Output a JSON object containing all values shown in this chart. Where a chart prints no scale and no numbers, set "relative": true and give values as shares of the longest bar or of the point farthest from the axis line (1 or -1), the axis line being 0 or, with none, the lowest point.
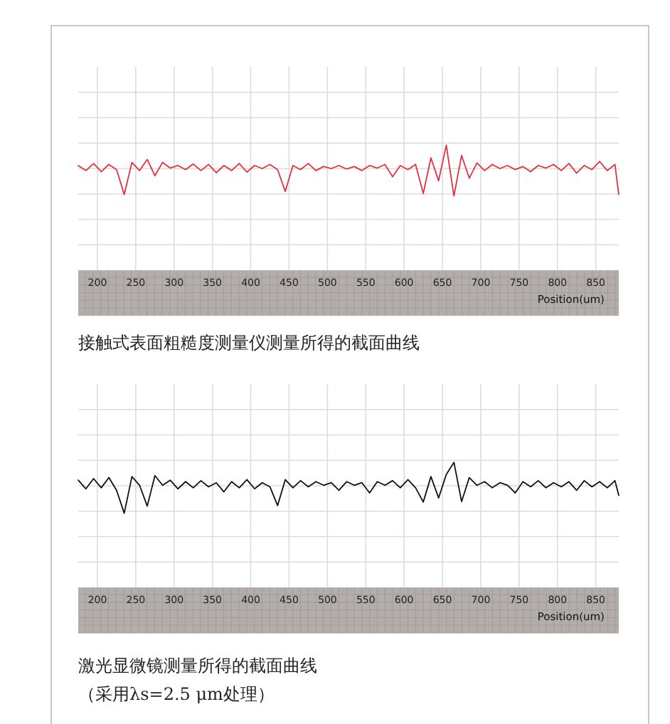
{
  "chart_data": [
    {
      "type": "line",
      "relative": true,
      "grid": true,
      "xlabel": "Position(um)",
      "xlim": [
        175,
        880
      ],
      "xticks": [
        200,
        250,
        300,
        350,
        400,
        450,
        500,
        550,
        600,
        650,
        700,
        750,
        800,
        850
      ],
      "x": [
        175,
        185,
        195,
        205,
        215,
        225,
        235,
        245,
        255,
        265,
        275,
        285,
        295,
        305,
        315,
        325,
        335,
        345,
        355,
        365,
        375,
        385,
        395,
        405,
        415,
        425,
        435,
        445,
        455,
        465,
        475,
        485,
        495,
        505,
        515,
        525,
        535,
        545,
        555,
        565,
        575,
        585,
        595,
        605,
        615,
        625,
        635,
        645,
        655,
        665,
        675,
        685,
        695,
        705,
        715,
        725,
        735,
        745,
        755,
        765,
        775,
        785,
        795,
        805,
        815,
        825,
        835,
        845,
        855,
        865,
        875,
        880
      ],
      "series": [
        {
          "color": "#e0323f",
          "values": [
            0.6,
            0.5,
            0.64,
            0.48,
            0.62,
            0.52,
            0.03,
            0.66,
            0.5,
            0.72,
            0.4,
            0.66,
            0.55,
            0.6,
            0.52,
            0.63,
            0.5,
            0.62,
            0.46,
            0.6,
            0.5,
            0.64,
            0.47,
            0.6,
            0.54,
            0.62,
            0.52,
            0.09,
            0.6,
            0.52,
            0.64,
            0.5,
            0.58,
            0.54,
            0.6,
            0.53,
            0.58,
            0.5,
            0.6,
            0.55,
            0.62,
            0.38,
            0.6,
            0.52,
            0.62,
            0.05,
            0.75,
            0.3,
            1.0,
            0.0,
            0.8,
            0.35,
            0.65,
            0.5,
            0.62,
            0.54,
            0.6,
            0.52,
            0.58,
            0.48,
            0.6,
            0.55,
            0.62,
            0.5,
            0.64,
            0.45,
            0.6,
            0.52,
            0.68,
            0.5,
            0.62,
            0.03
          ]
        }
      ],
      "annotations": [
        "接触式表面粗糙度测量仪测量所得的截面曲线"
      ]
    },
    {
      "type": "line",
      "relative": true,
      "grid": true,
      "xlabel": "Position(um)",
      "xlim": [
        175,
        880
      ],
      "xticks": [
        200,
        250,
        300,
        350,
        400,
        450,
        500,
        550,
        600,
        650,
        700,
        750,
        800,
        850
      ],
      "x": [
        175,
        185,
        195,
        205,
        215,
        225,
        235,
        245,
        255,
        265,
        275,
        285,
        295,
        305,
        315,
        325,
        335,
        345,
        355,
        365,
        375,
        385,
        395,
        405,
        415,
        425,
        435,
        445,
        455,
        465,
        475,
        485,
        495,
        505,
        515,
        525,
        535,
        545,
        555,
        565,
        575,
        585,
        595,
        605,
        615,
        625,
        635,
        645,
        655,
        665,
        675,
        685,
        695,
        705,
        715,
        725,
        735,
        745,
        755,
        765,
        775,
        785,
        795,
        805,
        815,
        825,
        835,
        845,
        855,
        865,
        875,
        880
      ],
      "series": [
        {
          "color": "#111111",
          "values": [
            0.65,
            0.48,
            0.68,
            0.5,
            0.7,
            0.45,
            0.0,
            0.72,
            0.55,
            0.14,
            0.74,
            0.55,
            0.65,
            0.48,
            0.62,
            0.5,
            0.64,
            0.52,
            0.6,
            0.42,
            0.62,
            0.5,
            0.66,
            0.48,
            0.6,
            0.52,
            0.15,
            0.66,
            0.5,
            0.64,
            0.52,
            0.62,
            0.55,
            0.6,
            0.45,
            0.62,
            0.55,
            0.6,
            0.4,
            0.62,
            0.55,
            0.64,
            0.5,
            0.66,
            0.5,
            0.22,
            0.72,
            0.3,
            0.76,
            1.0,
            0.23,
            0.7,
            0.55,
            0.62,
            0.5,
            0.6,
            0.55,
            0.4,
            0.62,
            0.52,
            0.64,
            0.5,
            0.6,
            0.52,
            0.62,
            0.45,
            0.64,
            0.52,
            0.62,
            0.5,
            0.64,
            0.35
          ]
        }
      ],
      "annotations": [
        "激光显微镜测量所得的截面曲线",
        "（采用λs=2.5 μm处理）"
      ]
    }
  ]
}
